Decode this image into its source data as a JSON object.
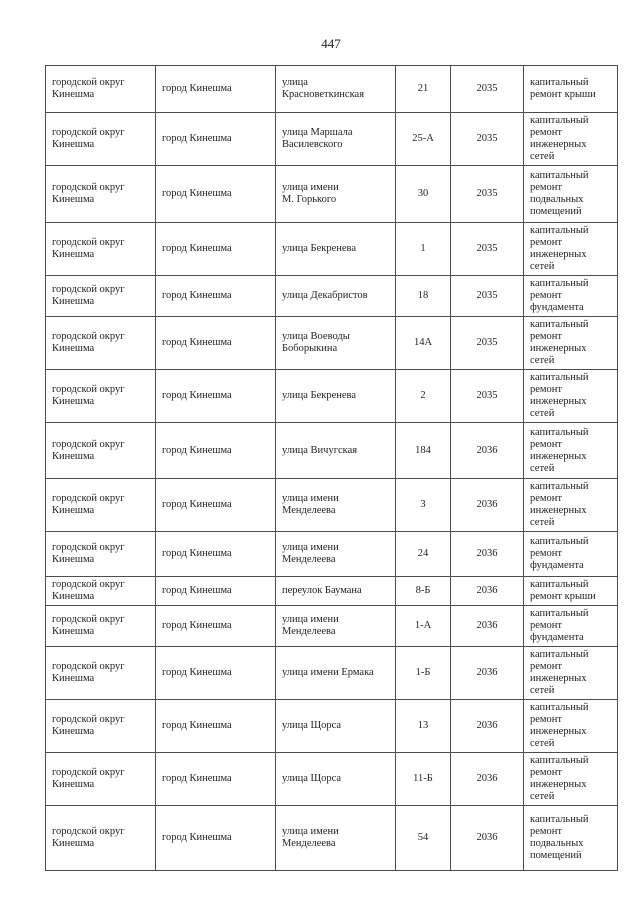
{
  "page": {
    "number": "447"
  },
  "table": {
    "rows": [
      {
        "district": "городской округ\nКинешма",
        "city": "город Кинешма",
        "street": "улица\nКрасноветкинская",
        "house": "21",
        "year": "2035",
        "work": "капитальный\nремонт крыши"
      },
      {
        "district": "городской округ\nКинешма",
        "city": "город Кинешма",
        "street": "улица Маршала\nВасилевского",
        "house": "25-А",
        "year": "2035",
        "work": "капитальный\nремонт\nинженерных\nсетей"
      },
      {
        "district": "городской округ\nКинешма",
        "city": "город Кинешма",
        "street": "улица имени\nМ. Горького",
        "house": "30",
        "year": "2035",
        "work": "капитальный\nремонт\nподвальных\nпомещений"
      },
      {
        "district": "городской округ\nКинешма",
        "city": "город Кинешма",
        "street": "улица Бекренева",
        "house": "1",
        "year": "2035",
        "work": "капитальный\nремонт\nинженерных\nсетей"
      },
      {
        "district": "городской округ\nКинешма",
        "city": "город Кинешма",
        "street": "улица Декабристов",
        "house": "18",
        "year": "2035",
        "work": "капитальный\nремонт\nфундамента"
      },
      {
        "district": "городской округ\nКинешма",
        "city": "город Кинешма",
        "street": "улица Воеводы\nБоборыкина",
        "house": "14А",
        "year": "2035",
        "work": "капитальный\nремонт\nинженерных\nсетей"
      },
      {
        "district": "городской округ\nКинешма",
        "city": "город Кинешма",
        "street": "улица Бекренева",
        "house": "2",
        "year": "2035",
        "work": "капитальный\nремонт\nинженерных\nсетей"
      },
      {
        "district": "городской округ\nКинешма",
        "city": "город Кинешма",
        "street": "улица Вичугская",
        "house": "184",
        "year": "2036",
        "work": "капитальный\nремонт\nинженерных\nсетей"
      },
      {
        "district": "городской округ\nКинешма",
        "city": "город Кинешма",
        "street": "улица имени\nМенделеева",
        "house": "3",
        "year": "2036",
        "work": "капитальный\nремонт\nинженерных\nсетей"
      },
      {
        "district": "городской округ\nКинешма",
        "city": "город Кинешма",
        "street": "улица имени\nМенделеева",
        "house": "24",
        "year": "2036",
        "work": "капитальный\nремонт\nфундамента"
      },
      {
        "district": "городской округ\nКинешма",
        "city": "город Кинешма",
        "street": "переулок Баумана",
        "house": "8-Б",
        "year": "2036",
        "work": "капитальный\nремонт крыши"
      },
      {
        "district": "городской округ\nКинешма",
        "city": "город Кинешма",
        "street": "улица имени\nМенделеева",
        "house": "1-А",
        "year": "2036",
        "work": "капитальный\nремонт\nфундамента"
      },
      {
        "district": "городской округ\nКинешма",
        "city": "город Кинешма",
        "street": "улица имени Ермака",
        "house": "1-Б",
        "year": "2036",
        "work": "капитальный\nремонт\nинженерных\nсетей"
      },
      {
        "district": "городской округ\nКинешма",
        "city": "город Кинешма",
        "street": "улица Щорса",
        "house": "13",
        "year": "2036",
        "work": "капитальный\nремонт\nинженерных\nсетей"
      },
      {
        "district": "городской округ\nКинешма",
        "city": "город Кинешма",
        "street": "улица Щорса",
        "house": "11-Б",
        "year": "2036",
        "work": "капитальный\nремонт\nинженерных\nсетей"
      },
      {
        "district": "городской округ\nКинешма",
        "city": "город Кинешма",
        "street": "улица имени\nМенделеева",
        "house": "54",
        "year": "2036",
        "work": "капитальный\nремонт\nподвальных\nпомещений"
      }
    ]
  }
}
